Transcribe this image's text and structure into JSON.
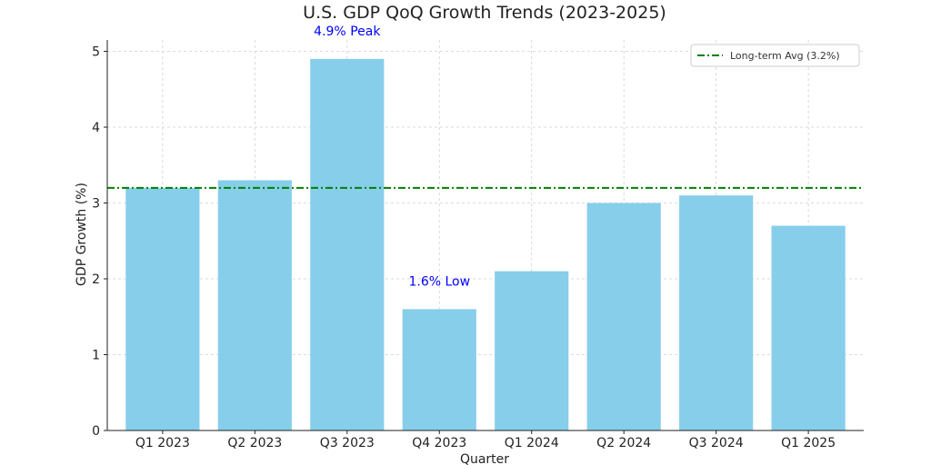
{
  "chart_data": {
    "type": "bar",
    "title": "U.S. GDP QoQ Growth Trends (2023-2025)",
    "xlabel": "Quarter",
    "ylabel": "GDP Growth (%)",
    "categories": [
      "Q1 2023",
      "Q2 2023",
      "Q3 2023",
      "Q4 2023",
      "Q1 2024",
      "Q2 2024",
      "Q3 2024",
      "Q1 2025"
    ],
    "values": [
      3.2,
      3.3,
      4.9,
      1.6,
      2.1,
      3.0,
      3.1,
      2.7
    ],
    "ylim": [
      0,
      5.15
    ],
    "yticks": [
      0,
      1,
      2,
      3,
      4,
      5
    ],
    "grid": true,
    "bar_color": "#87CEEB",
    "reference_line": {
      "value": 3.2,
      "label": "Long-term Avg (3.2%)",
      "color": "#008000",
      "style": "dash-dot"
    },
    "legend_position": "top-right",
    "annotations": [
      {
        "category": "Q3 2023",
        "text": "4.9% Peak",
        "color": "#0000FF"
      },
      {
        "category": "Q4 2023",
        "text": "1.6% Low",
        "color": "#0000FF"
      }
    ]
  }
}
